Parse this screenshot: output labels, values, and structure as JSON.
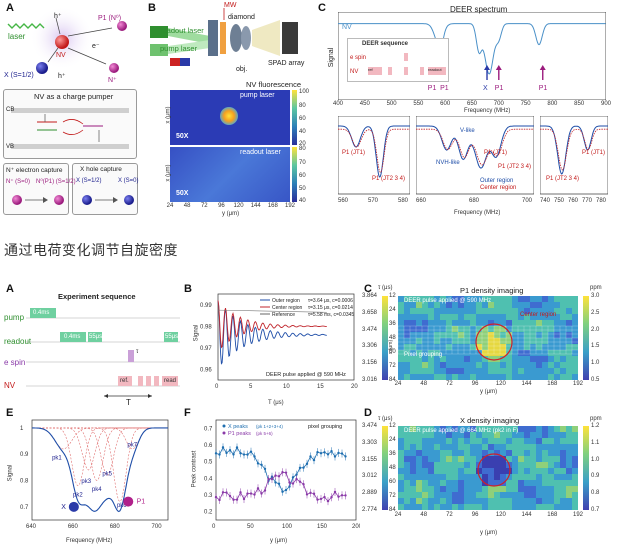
{
  "heading": "通过电荷变化调节自旋密度",
  "top": {
    "A": {
      "letter": "A",
      "labels": {
        "laser": "laser",
        "h_plus": "h⁺",
        "e_minus": "e⁻",
        "nv": "NV",
        "p1": "P1 (N⁰)",
        "x": "X (S=1/2)",
        "n_plus": "N⁺"
      },
      "pumper_title": "NV as a charge pumper",
      "cb": "CB",
      "vb": "VB",
      "capture1_title": "N⁺ electron capture",
      "capture2_title": "X hole capture",
      "n_plus_s0": "N⁺\n(S=0)",
      "n0_p1": "N⁰(P1)\n(S=1/2)",
      "x_s12": "X\n(S=1/2)",
      "x_s0": "X\n(S=0)"
    },
    "B": {
      "letter": "B",
      "mw": "MW",
      "diamond": "diamond",
      "readout_laser": "readout laser",
      "pump_laser": "pump laser",
      "spad": "SPAD array",
      "obj": "obj.",
      "fluor_title": "NV fluorescence",
      "pump_map_label": "pump laser",
      "readout_map_label": "readout laser",
      "mag": "50X",
      "xlabel": "y (μm)",
      "ylabel": "x (μm)",
      "xticks": [
        "24",
        "48",
        "72",
        "96",
        "120",
        "144",
        "168",
        "192"
      ],
      "yticks": [
        "0",
        "20",
        "40"
      ],
      "cbar1": [
        "100",
        "80",
        "60",
        "40",
        "20"
      ],
      "cbar2": [
        "80",
        "70",
        "60",
        "50",
        "40"
      ]
    },
    "C": {
      "letter": "C",
      "title": "DEER spectrum",
      "nv": "NV",
      "seq_title": "DEER sequence",
      "seq_rows": [
        "e spin",
        "NV"
      ],
      "seq_boxes": [
        "ref",
        "π/2",
        "π",
        "π/2",
        "readout"
      ],
      "ylabel": "Signal",
      "xlabel": "Frequency (MHz)",
      "xticks": [
        "400",
        "450",
        "500",
        "550",
        "600",
        "650",
        "700",
        "750",
        "800",
        "850",
        "900"
      ],
      "peak_labels": [
        "P1",
        "P1",
        "X",
        "P1",
        "P1"
      ],
      "zoom_xlabel": "Frequency (MHz)",
      "zoom1": {
        "xticks": [
          "560",
          "570",
          "580"
        ],
        "labels": [
          "P1\n(JT1)",
          "P1\n(JT2 3 4)"
        ]
      },
      "zoom2": {
        "xticks": [
          "660",
          "680",
          "700"
        ],
        "labels": [
          "V-like",
          "NVH-like",
          "P1\n(JT1)",
          "P1\n(JT2 3 4)"
        ],
        "legend": [
          "Outer region",
          "Center region"
        ]
      },
      "zoom3": {
        "xticks": [
          "740",
          "750",
          "760",
          "770",
          "780"
        ],
        "labels": [
          "P1\n(JT2 3 4)",
          "P1\n(JT1)"
        ]
      }
    }
  },
  "bottom": {
    "A": {
      "letter": "A",
      "title": "Experiment sequence",
      "rows": [
        "pump",
        "readout",
        "e spin",
        "NV"
      ],
      "pump_dur": "0.4ms",
      "readout_durs": [
        "0.4ms",
        "55μs",
        "55μs"
      ],
      "nv_boxes": [
        "ref.",
        "π/2",
        "π",
        "π/2",
        "read"
      ],
      "t_label": "T",
      "tau_label": "τ"
    },
    "B": {
      "letter": "B",
      "ylabel": "Signal",
      "xlabel": "T (μs)",
      "xticks": [
        "0",
        "5",
        "10",
        "15",
        "20"
      ],
      "yticks": [
        "0.96",
        "0.97",
        "0.98",
        "0.99"
      ],
      "legend": [
        {
          "name": "Outer region",
          "value": "τ=3.64 μs, c=0.0006",
          "color": "#1f4ea8"
        },
        {
          "name": "Center region",
          "value": "τ=3.15 μs, c=0.0214",
          "color": "#c0262d"
        },
        {
          "name": "Reference",
          "value": "τ=5.58 ms, c=0.0345",
          "color": "#666666"
        }
      ],
      "annotation": "DEER pulse applied @ 590 MHz"
    },
    "C": {
      "letter": "C",
      "title": "P1 density imaging",
      "annotation": "DEER pulse applied @ 590 MHz",
      "center_label": "Center region",
      "grouping": "Pixel grouping",
      "xlabel": "y (μm)",
      "xticks": [
        "24",
        "48",
        "72",
        "96",
        "120",
        "144",
        "168",
        "192"
      ],
      "yticks": [
        "12",
        "24",
        "36",
        "48",
        "60",
        "72",
        "84"
      ],
      "ylabel": "x (μm)",
      "tau_label": "τ (μs)",
      "tau_ticks": [
        "3.864",
        "3.658",
        "3.474",
        "3.306",
        "3.156",
        "3.016"
      ],
      "ppm_label": "ppm",
      "ppm_ticks": [
        "3.0",
        "2.5",
        "2.0",
        "1.5",
        "1.0",
        "0.5"
      ]
    },
    "D": {
      "letter": "D",
      "title": "X density imaging",
      "annotation": "DEER pulse applied @ 664 MHz (pk2 in F)",
      "xlabel": "y (μm)",
      "xticks": [
        "24",
        "48",
        "72",
        "96",
        "120",
        "144",
        "168",
        "192"
      ],
      "yticks": [
        "12",
        "24",
        "36",
        "48",
        "60",
        "72",
        "84"
      ],
      "tau_label": "τ (μs)",
      "tau_ticks": [
        "3.474",
        "3.303",
        "3.155",
        "3.012",
        "2.889",
        "2.774"
      ],
      "ppm_label": "ppm",
      "ppm_ticks": [
        "1.2",
        "1.1",
        "1.0",
        "0.9",
        "0.8",
        "0.7"
      ]
    },
    "E": {
      "letter": "E",
      "ylabel": "Signal",
      "xlabel": "Frequency (MHz)",
      "xticks": [
        "640",
        "660",
        "680",
        "700"
      ],
      "yticks": [
        "0.7",
        "0.8",
        "0.9",
        "1"
      ],
      "peaks": [
        "pk1",
        "pk2",
        "pk3",
        "pk4",
        "pk5",
        "pk6",
        "pk7"
      ],
      "x": "X",
      "p1": "P1"
    },
    "F": {
      "letter": "F",
      "ylabel": "Peak contrast",
      "xlabel": "y (μm)",
      "xticks": [
        "0",
        "50",
        "100",
        "150",
        "200"
      ],
      "yticks": [
        "0.2",
        "0.3",
        "0.4",
        "0.5",
        "0.6",
        "0.7"
      ],
      "legend": [
        {
          "name": "X peaks",
          "sub": "(pk 1+2+3+4)",
          "color": "#1f6fb0"
        },
        {
          "name": "P1 peaks",
          "sub": "(pk 5+6)",
          "color": "#8a3aa8"
        }
      ],
      "grouping": "pixel grouping"
    }
  }
}
